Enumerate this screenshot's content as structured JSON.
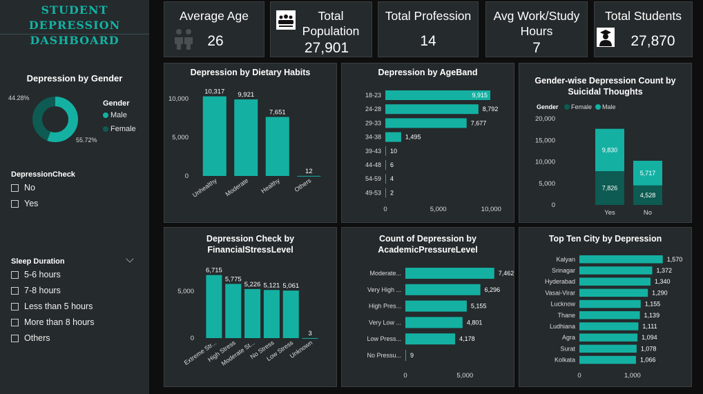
{
  "dashboard": {
    "title_line1": "STUDENT DEPRESSION",
    "title_line2": "DASHBOARD"
  },
  "colors": {
    "accent": "#14b1a3",
    "dark_teal": "#0d5b52",
    "panel": "#252a2c",
    "background": "#0e0e0e"
  },
  "kpis": {
    "avg_age": {
      "label": "Average Age",
      "value": "26",
      "icon": "people-icon"
    },
    "population": {
      "label_line1": "Total",
      "label_line2": "Population",
      "value": "27,901",
      "icon": "group-icon"
    },
    "profession": {
      "label": "Total Profession",
      "value": "14"
    },
    "hours": {
      "label_line1": "Avg Work/Study",
      "label_line2": "Hours",
      "value": "7"
    },
    "students": {
      "label": "Total Students",
      "value": "27,870",
      "icon": "student-icon"
    }
  },
  "sidebar": {
    "gender_chart": {
      "title": "Depression by Gender",
      "legend_title": "Gender",
      "male_label": "Male",
      "female_label": "Female",
      "male_pct_label": "55.72%",
      "female_pct_label": "44.28%"
    },
    "depression_check": {
      "title": "DepressionCheck",
      "options": [
        "No",
        "Yes"
      ]
    },
    "sleep_duration": {
      "title": "Sleep Duration",
      "options": [
        "5-6 hours",
        "7-8 hours",
        "Less than 5 hours",
        "More than 8 hours",
        "Others"
      ]
    }
  },
  "chart_data": [
    {
      "id": "gender",
      "type": "pie",
      "title": "Depression by Gender",
      "categories": [
        "Male",
        "Female"
      ],
      "values": [
        55.72,
        44.28
      ]
    },
    {
      "id": "dietary",
      "type": "bar",
      "title": "Depression by Dietary Habits",
      "categories": [
        "Unhealthy",
        "Moderate",
        "Healthy",
        "Others"
      ],
      "values": [
        10317,
        9921,
        7651,
        12
      ],
      "ylim": [
        0,
        11000
      ],
      "yticks": [
        0,
        5000,
        10000
      ],
      "ytick_labels": [
        "0",
        "5,000",
        "10,000"
      ]
    },
    {
      "id": "ageband",
      "type": "bar",
      "orientation": "horizontal",
      "title": "Depression by AgeBand",
      "categories": [
        "18-23",
        "24-28",
        "29-33",
        "34-38",
        "39-43",
        "44-48",
        "54-59",
        "49-53"
      ],
      "values": [
        9915,
        8792,
        7677,
        1495,
        10,
        6,
        4,
        2
      ],
      "xlim": [
        0,
        10500
      ],
      "xticks": [
        0,
        5000,
        10000
      ],
      "xtick_labels": [
        "0",
        "5,000",
        "10,000"
      ]
    },
    {
      "id": "suicidal",
      "type": "bar",
      "stacked": true,
      "title": "Gender-wise Depression Count by Suicidal Thoughts",
      "legend_title": "Gender",
      "categories": [
        "Yes",
        "No"
      ],
      "series": [
        {
          "name": "Female",
          "values": [
            7826,
            4528
          ],
          "color": "#0d5b52"
        },
        {
          "name": "Male",
          "values": [
            9830,
            5717
          ],
          "color": "#14b1a3"
        }
      ],
      "ylim": [
        0,
        20000
      ],
      "yticks": [
        0,
        5000,
        10000,
        15000,
        20000
      ],
      "ytick_labels": [
        "0",
        "5,000",
        "10,000",
        "15,000",
        "20,000"
      ]
    },
    {
      "id": "financial",
      "type": "bar",
      "title": "Depression Check by FinancialStressLevel",
      "categories": [
        "Extreme Str...",
        "High Stress",
        "Moderate St...",
        "No Stress",
        "Low Stress",
        "Unknown"
      ],
      "values": [
        6715,
        5775,
        5226,
        5121,
        5061,
        3
      ],
      "ylim": [
        0,
        7200
      ],
      "yticks": [
        0,
        5000
      ],
      "ytick_labels": [
        "0",
        "5,000"
      ]
    },
    {
      "id": "academic",
      "type": "bar",
      "orientation": "horizontal",
      "title": "Count of Depression by AcademicPressureLevel",
      "categories": [
        "Moderate...",
        "Very High ...",
        "High Pres...",
        "Very Low ...",
        "Low Press...",
        "No Pressu..."
      ],
      "values": [
        7462,
        6296,
        5155,
        4801,
        4178,
        9
      ],
      "xlim": [
        0,
        8000
      ],
      "xticks": [
        0,
        5000
      ],
      "xtick_labels": [
        "0",
        "5,000"
      ]
    },
    {
      "id": "city",
      "type": "bar",
      "orientation": "horizontal",
      "title": "Top Ten City by Depression",
      "categories": [
        "Kalyan",
        "Srinagar",
        "Hyderabad",
        "Vasai-Virar",
        "Lucknow",
        "Thane",
        "Ludhiana",
        "Agra",
        "Surat",
        "Kolkata"
      ],
      "values": [
        1570,
        1372,
        1340,
        1290,
        1155,
        1139,
        1111,
        1094,
        1078,
        1066
      ],
      "xlim": [
        0,
        1600
      ],
      "xticks": [
        0,
        1000
      ],
      "xtick_labels": [
        "0",
        "1,000"
      ]
    }
  ]
}
